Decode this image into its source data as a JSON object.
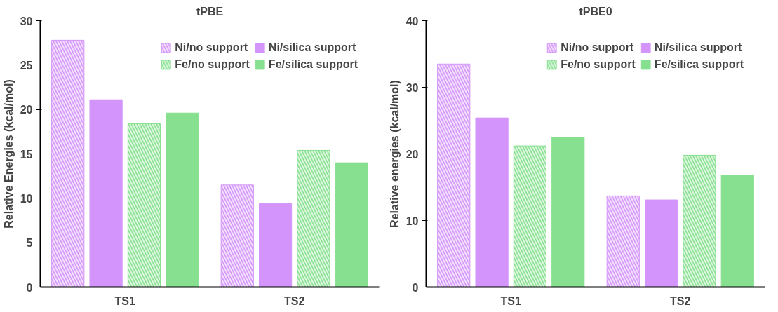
{
  "chart_data": [
    {
      "type": "bar",
      "title": "tPBE",
      "ylabel": "Relative Energies (kcal/mol)",
      "categories": [
        "TS1",
        "TS2"
      ],
      "ylim": [
        0,
        30
      ],
      "yticks": [
        0,
        5,
        10,
        15,
        20,
        25,
        30
      ],
      "grid": false,
      "legend": "top right",
      "series": [
        {
          "name": "Ni/no support",
          "color": "#d394fb",
          "values": [
            27.8,
            11.5
          ]
        },
        {
          "name": "Ni/silica support",
          "color": "#d394fb",
          "values": [
            21.1,
            9.4
          ]
        },
        {
          "name": "Fe/no support",
          "color": "#86e08f",
          "values": [
            18.4,
            15.4
          ]
        },
        {
          "name": "Fe/silica support",
          "color": "#86e08f",
          "values": [
            19.6,
            14.0
          ]
        }
      ]
    },
    {
      "type": "bar",
      "title": "tPBE0",
      "ylabel": "Relative energies (kcal/mol)",
      "categories": [
        "TS1",
        "TS2"
      ],
      "ylim": [
        0,
        40
      ],
      "yticks": [
        0,
        10,
        20,
        30,
        40
      ],
      "grid": false,
      "legend": "top right",
      "series": [
        {
          "name": "Ni/no support",
          "color": "#d394fb",
          "values": [
            33.5,
            13.7
          ]
        },
        {
          "name": "Ni/silica support",
          "color": "#d394fb",
          "values": [
            25.4,
            13.1
          ]
        },
        {
          "name": "Fe/no support",
          "color": "#86e08f",
          "values": [
            21.2,
            19.8
          ]
        },
        {
          "name": "Fe/silica support",
          "color": "#86e08f",
          "values": [
            22.5,
            16.8
          ]
        }
      ]
    }
  ]
}
